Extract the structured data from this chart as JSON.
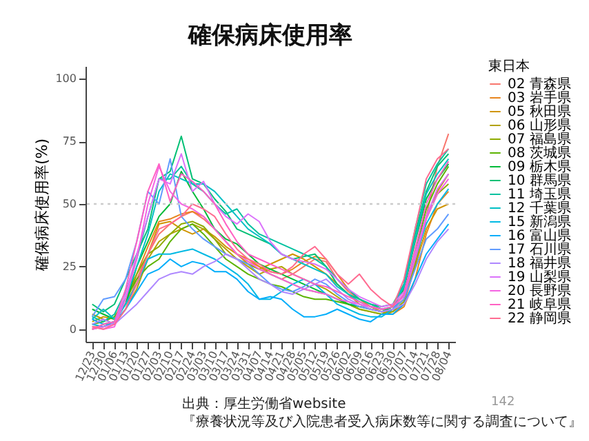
{
  "chart_data": {
    "type": "line",
    "title": "確保病床使用率",
    "ylabel": "確保病床使用率(%)",
    "legend_title": "東日本",
    "legend": "right",
    "categories": [
      "12/23",
      "12/30",
      "01/06",
      "01/13",
      "01/20",
      "01/27",
      "02/03",
      "02/10",
      "02/17",
      "02/24",
      "03/03",
      "03/10",
      "03/17",
      "03/24",
      "03/31",
      "04/07",
      "04/14",
      "04/21",
      "04/28",
      "05/05",
      "05/12",
      "05/19",
      "05/26",
      "06/02",
      "06/09",
      "06/16",
      "06/23",
      "06/30",
      "07/07",
      "07/14",
      "07/21",
      "07/28",
      "08/04"
    ],
    "ylim": [
      -5,
      105
    ],
    "yticks": [
      0,
      25,
      50,
      75,
      100
    ],
    "ref_lines": [
      {
        "axis": "y",
        "value": 50,
        "color": "#cccccc",
        "line_style": "dotted"
      }
    ],
    "series": [
      {
        "name": "02 青森県",
        "color": "#f8766d",
        "values": [
          1,
          1,
          2,
          8,
          20,
          30,
          38,
          42,
          45,
          47,
          44,
          40,
          35,
          30,
          27,
          25,
          22,
          20,
          22,
          25,
          28,
          27,
          20,
          15,
          12,
          10,
          8,
          7,
          10,
          25,
          45,
          65,
          78
        ]
      },
      {
        "name": "03 岩手県",
        "color": "#e7851e",
        "values": [
          0,
          1,
          3,
          12,
          22,
          33,
          43,
          44,
          46,
          47,
          45,
          40,
          35,
          30,
          28,
          25,
          23,
          22,
          24,
          27,
          29,
          28,
          22,
          16,
          12,
          9,
          7,
          6,
          9,
          20,
          38,
          50,
          55
        ]
      },
      {
        "name": "05 秋田県",
        "color": "#d09400",
        "values": [
          3,
          5,
          4,
          10,
          18,
          30,
          42,
          43,
          40,
          38,
          40,
          37,
          33,
          30,
          26,
          24,
          26,
          28,
          30,
          28,
          25,
          22,
          18,
          14,
          10,
          8,
          7,
          8,
          12,
          25,
          40,
          48,
          50
        ]
      },
      {
        "name": "06 山形県",
        "color": "#b2a100",
        "values": [
          6,
          4,
          2,
          8,
          16,
          28,
          35,
          38,
          40,
          42,
          40,
          36,
          32,
          28,
          25,
          22,
          24,
          25,
          22,
          20,
          18,
          16,
          13,
          10,
          8,
          7,
          6,
          8,
          12,
          28,
          45,
          55,
          62
        ]
      },
      {
        "name": "07 福島県",
        "color": "#8eab00",
        "values": [
          0,
          2,
          3,
          10,
          22,
          30,
          33,
          38,
          42,
          43,
          41,
          36,
          30,
          28,
          26,
          24,
          22,
          20,
          18,
          16,
          15,
          14,
          12,
          10,
          8,
          7,
          6,
          7,
          11,
          26,
          44,
          54,
          58
        ]
      },
      {
        "name": "08 茨城県",
        "color": "#5bb300",
        "values": [
          2,
          3,
          5,
          12,
          20,
          25,
          28,
          35,
          40,
          42,
          38,
          33,
          28,
          25,
          22,
          20,
          18,
          17,
          15,
          13,
          12,
          12,
          11,
          10,
          9,
          8,
          7,
          8,
          14,
          30,
          48,
          58,
          65
        ]
      },
      {
        "name": "09 栃木県",
        "color": "#00ba38",
        "values": [
          8,
          6,
          4,
          10,
          25,
          35,
          45,
          50,
          63,
          55,
          48,
          40,
          36,
          34,
          30,
          26,
          24,
          22,
          20,
          18,
          16,
          14,
          12,
          10,
          9,
          8,
          7,
          9,
          16,
          35,
          52,
          60,
          66
        ]
      },
      {
        "name": "10 群馬県",
        "color": "#00bf74",
        "values": [
          10,
          7,
          10,
          20,
          30,
          40,
          60,
          63,
          77,
          60,
          58,
          52,
          47,
          40,
          38,
          36,
          34,
          30,
          28,
          29,
          30,
          25,
          18,
          14,
          12,
          10,
          9,
          10,
          18,
          38,
          55,
          65,
          70
        ]
      },
      {
        "name": "11 埼玉県",
        "color": "#00c19f",
        "values": [
          5,
          3,
          6,
          15,
          28,
          45,
          60,
          60,
          65,
          58,
          55,
          50,
          46,
          48,
          42,
          38,
          36,
          34,
          32,
          30,
          28,
          25,
          20,
          16,
          12,
          10,
          8,
          9,
          18,
          40,
          58,
          66,
          72
        ]
      },
      {
        "name": "12 千葉県",
        "color": "#00bfc4",
        "values": [
          4,
          8,
          4,
          12,
          25,
          38,
          55,
          62,
          60,
          58,
          58,
          55,
          50,
          45,
          40,
          37,
          34,
          30,
          28,
          26,
          24,
          22,
          17,
          14,
          11,
          9,
          8,
          9,
          17,
          36,
          54,
          62,
          68
        ]
      },
      {
        "name": "15 新潟県",
        "color": "#00b9e3",
        "values": [
          2,
          1,
          3,
          10,
          18,
          28,
          30,
          30,
          31,
          32,
          30,
          28,
          25,
          22,
          18,
          12,
          12,
          15,
          18,
          20,
          18,
          14,
          10,
          8,
          6,
          5,
          5,
          8,
          14,
          28,
          42,
          50,
          56
        ]
      },
      {
        "name": "16 富山県",
        "color": "#00adfa",
        "values": [
          4,
          2,
          3,
          8,
          15,
          22,
          24,
          28,
          25,
          27,
          26,
          23,
          23,
          20,
          15,
          12,
          13,
          12,
          8,
          5,
          5,
          6,
          8,
          6,
          4,
          3,
          6,
          6,
          10,
          20,
          30,
          36,
          42
        ]
      },
      {
        "name": "17 石川県",
        "color": "#619cff",
        "values": [
          5,
          12,
          13,
          20,
          35,
          55,
          50,
          68,
          45,
          40,
          36,
          33,
          30,
          28,
          26,
          22,
          18,
          16,
          15,
          17,
          20,
          18,
          14,
          11,
          9,
          8,
          7,
          8,
          12,
          24,
          36,
          40,
          46
        ]
      },
      {
        "name": "18 福井県",
        "color": "#ae87ff",
        "values": [
          2,
          4,
          2,
          6,
          10,
          15,
          20,
          22,
          23,
          22,
          25,
          27,
          30,
          28,
          24,
          20,
          18,
          15,
          14,
          16,
          18,
          20,
          16,
          12,
          10,
          8,
          7,
          8,
          10,
          18,
          28,
          35,
          40
        ]
      },
      {
        "name": "19 山梨県",
        "color": "#db72fb",
        "values": [
          0,
          1,
          2,
          14,
          30,
          45,
          60,
          58,
          70,
          55,
          59,
          50,
          45,
          42,
          46,
          43,
          35,
          30,
          28,
          27,
          26,
          24,
          20,
          16,
          13,
          11,
          9,
          10,
          15,
          30,
          45,
          56,
          62
        ]
      },
      {
        "name": "20 長野県",
        "color": "#f564e3",
        "values": [
          1,
          0,
          1,
          12,
          28,
          50,
          65,
          55,
          50,
          48,
          45,
          40,
          35,
          30,
          27,
          24,
          22,
          20,
          18,
          16,
          15,
          14,
          12,
          11,
          10,
          9,
          8,
          9,
          13,
          28,
          44,
          54,
          60
        ]
      },
      {
        "name": "21 岐阜県",
        "color": "#ff61c3",
        "values": [
          0,
          2,
          3,
          16,
          35,
          55,
          66,
          51,
          62,
          59,
          55,
          50,
          42,
          35,
          30,
          28,
          26,
          24,
          22,
          20,
          18,
          17,
          15,
          13,
          11,
          9,
          8,
          9,
          14,
          32,
          50,
          60,
          67
        ]
      },
      {
        "name": "22 静岡県",
        "color": "#ff6c91",
        "values": [
          1,
          0,
          2,
          8,
          18,
          30,
          40,
          42,
          45,
          50,
          48,
          45,
          38,
          32,
          28,
          26,
          23,
          22,
          25,
          30,
          33,
          28,
          22,
          18,
          22,
          16,
          12,
          9,
          20,
          40,
          60,
          68,
          72
        ]
      }
    ],
    "annotations": [
      "142",
      "出典：厚生労働省website",
      "『療養状況等及び入院患者受入病床数等に関する調査について』"
    ]
  }
}
